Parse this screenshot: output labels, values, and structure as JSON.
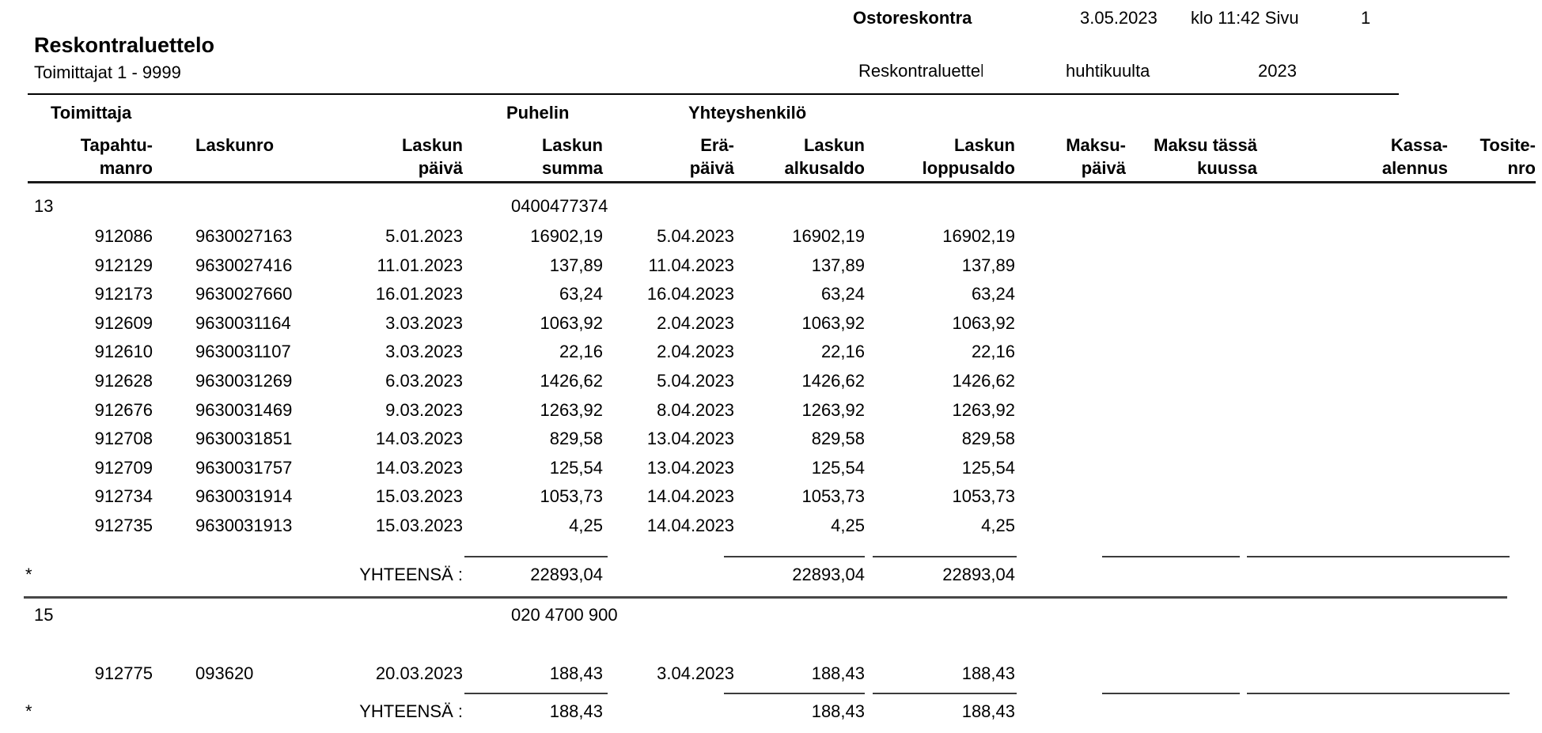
{
  "page_header": {
    "module": "Ostoreskontra",
    "date": "3.05.2023",
    "time_page_label": "klo 11:42 Sivu",
    "page_number": "1",
    "report_name": "Reskontraluettelo",
    "period_month": "huhtikuulta",
    "period_year": "2023"
  },
  "title": "Reskontraluettelo",
  "subtitle": "Toimittajat 1 - 9999",
  "table": {
    "group_headers": {
      "toimittaja": "Toimittaja",
      "puhelin": "Puhelin",
      "yhteyshenkilo": "Yhteyshenkilö"
    },
    "columns": [
      {
        "key": "tapahtumanro",
        "line1": "Tapahtu-",
        "line2": "manro"
      },
      {
        "key": "laskunro",
        "line1": "Laskunro",
        "line2": ""
      },
      {
        "key": "laskun-paiva",
        "line1": "Laskun",
        "line2": "päivä"
      },
      {
        "key": "laskun-summa",
        "line1": "Laskun",
        "line2": "summa"
      },
      {
        "key": "era-paiva",
        "line1": "Erä-",
        "line2": "päivä"
      },
      {
        "key": "laskun-alkusaldo",
        "line1": "Laskun",
        "line2": "alkusaldo"
      },
      {
        "key": "laskun-loppusaldo",
        "line1": "Laskun",
        "line2": "loppusaldo"
      },
      {
        "key": "maksu-paiva",
        "line1": "Maksu-",
        "line2": "päivä"
      },
      {
        "key": "maksu-tassa-kuussa",
        "line1": "Maksu tässä",
        "line2": "kuussa"
      },
      {
        "key": "kassa-alennus",
        "line1": "Kassa-",
        "line2": "alennus"
      },
      {
        "key": "tosite-nro",
        "line1": "Tosite-",
        "line2": "nro"
      }
    ],
    "total_row_marker": "*",
    "total_label": "YHTEENSÄ :",
    "groups": [
      {
        "supplier_number": "13",
        "phone": "0400477374",
        "rows": [
          [
            "912086",
            "9630027163",
            "5.01.2023",
            "16902,19",
            "5.04.2023",
            "16902,19",
            "16902,19"
          ],
          [
            "912129",
            "9630027416",
            "11.01.2023",
            "137,89",
            "11.04.2023",
            "137,89",
            "137,89"
          ],
          [
            "912173",
            "9630027660",
            "16.01.2023",
            "63,24",
            "16.04.2023",
            "63,24",
            "63,24"
          ],
          [
            "912609",
            "9630031164",
            "3.03.2023",
            "1063,92",
            "2.04.2023",
            "1063,92",
            "1063,92"
          ],
          [
            "912610",
            "9630031107",
            "3.03.2023",
            "22,16",
            "2.04.2023",
            "22,16",
            "22,16"
          ],
          [
            "912628",
            "9630031269",
            "6.03.2023",
            "1426,62",
            "5.04.2023",
            "1426,62",
            "1426,62"
          ],
          [
            "912676",
            "9630031469",
            "9.03.2023",
            "1263,92",
            "8.04.2023",
            "1263,92",
            "1263,92"
          ],
          [
            "912708",
            "9630031851",
            "14.03.2023",
            "829,58",
            "13.04.2023",
            "829,58",
            "829,58"
          ],
          [
            "912709",
            "9630031757",
            "14.03.2023",
            "125,54",
            "13.04.2023",
            "125,54",
            "125,54"
          ],
          [
            "912734",
            "9630031914",
            "15.03.2023",
            "1053,73",
            "14.04.2023",
            "1053,73",
            "1053,73"
          ],
          [
            "912735",
            "9630031913",
            "15.03.2023",
            "4,25",
            "14.04.2023",
            "4,25",
            "4,25"
          ]
        ],
        "totals": {
          "summa": "22893,04",
          "alkusaldo": "22893,04",
          "loppusaldo": "22893,04"
        }
      },
      {
        "supplier_number": "15",
        "phone": "020 4700 900",
        "rows": [
          [
            "912775",
            "093620",
            "20.03.2023",
            "188,43",
            "3.04.2023",
            "188,43",
            "188,43"
          ]
        ],
        "totals": {
          "summa": "188,43",
          "alkusaldo": "188,43",
          "loppusaldo": "188,43"
        }
      }
    ]
  }
}
